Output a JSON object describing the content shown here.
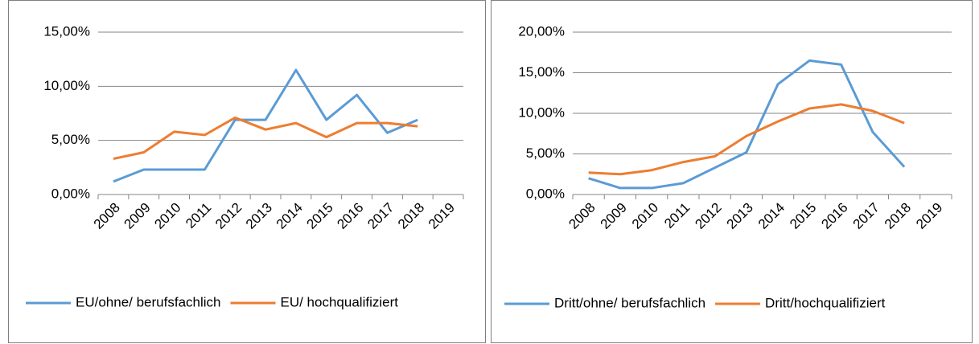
{
  "chart_data": [
    {
      "type": "line",
      "categories": [
        "2008",
        "2009",
        "2010",
        "2011",
        "2012",
        "2013",
        "2014",
        "2015",
        "2016",
        "2017",
        "2018",
        "2019"
      ],
      "series": [
        {
          "name": "EU/ohne/ berufsfachlich",
          "color": "#5b9bd5",
          "values": [
            1.2,
            2.3,
            2.3,
            2.3,
            6.9,
            6.9,
            11.5,
            6.9,
            9.2,
            5.7,
            6.9,
            null
          ]
        },
        {
          "name": "EU/ hochqualifiziert",
          "color": "#ed7d31",
          "values": [
            3.3,
            3.9,
            5.8,
            5.5,
            7.1,
            6.0,
            6.6,
            5.3,
            6.6,
            6.6,
            6.3,
            null
          ]
        }
      ],
      "ylim": [
        0,
        15
      ],
      "yticks": [
        {
          "value": 0,
          "label": "0,00%"
        },
        {
          "value": 5,
          "label": "5,00%"
        },
        {
          "value": 10,
          "label": "10,00%"
        },
        {
          "value": 15,
          "label": "15,00%"
        }
      ],
      "grid": true,
      "legend": "bottom"
    },
    {
      "type": "line",
      "categories": [
        "2008",
        "2009",
        "2010",
        "2011",
        "2012",
        "2013",
        "2014",
        "2015",
        "2016",
        "2017",
        "2018",
        "2019"
      ],
      "series": [
        {
          "name": "Dritt/ohne/ berufsfachlich",
          "color": "#5b9bd5",
          "values": [
            2.0,
            0.8,
            0.8,
            1.4,
            3.3,
            5.2,
            13.6,
            16.5,
            16.0,
            7.7,
            3.4,
            null
          ]
        },
        {
          "name": "Dritt/hochqualifiziert",
          "color": "#ed7d31",
          "values": [
            2.7,
            2.5,
            3.0,
            4.0,
            4.7,
            7.2,
            9.0,
            10.6,
            11.1,
            10.3,
            8.8,
            null
          ]
        }
      ],
      "ylim": [
        0,
        20
      ],
      "yticks": [
        {
          "value": 0,
          "label": "0,00%"
        },
        {
          "value": 5,
          "label": "5,00%"
        },
        {
          "value": 10,
          "label": "10,00%"
        },
        {
          "value": 15,
          "label": "15,00%"
        },
        {
          "value": 20,
          "label": "20,00%"
        }
      ],
      "grid": true,
      "legend": "bottom"
    }
  ]
}
